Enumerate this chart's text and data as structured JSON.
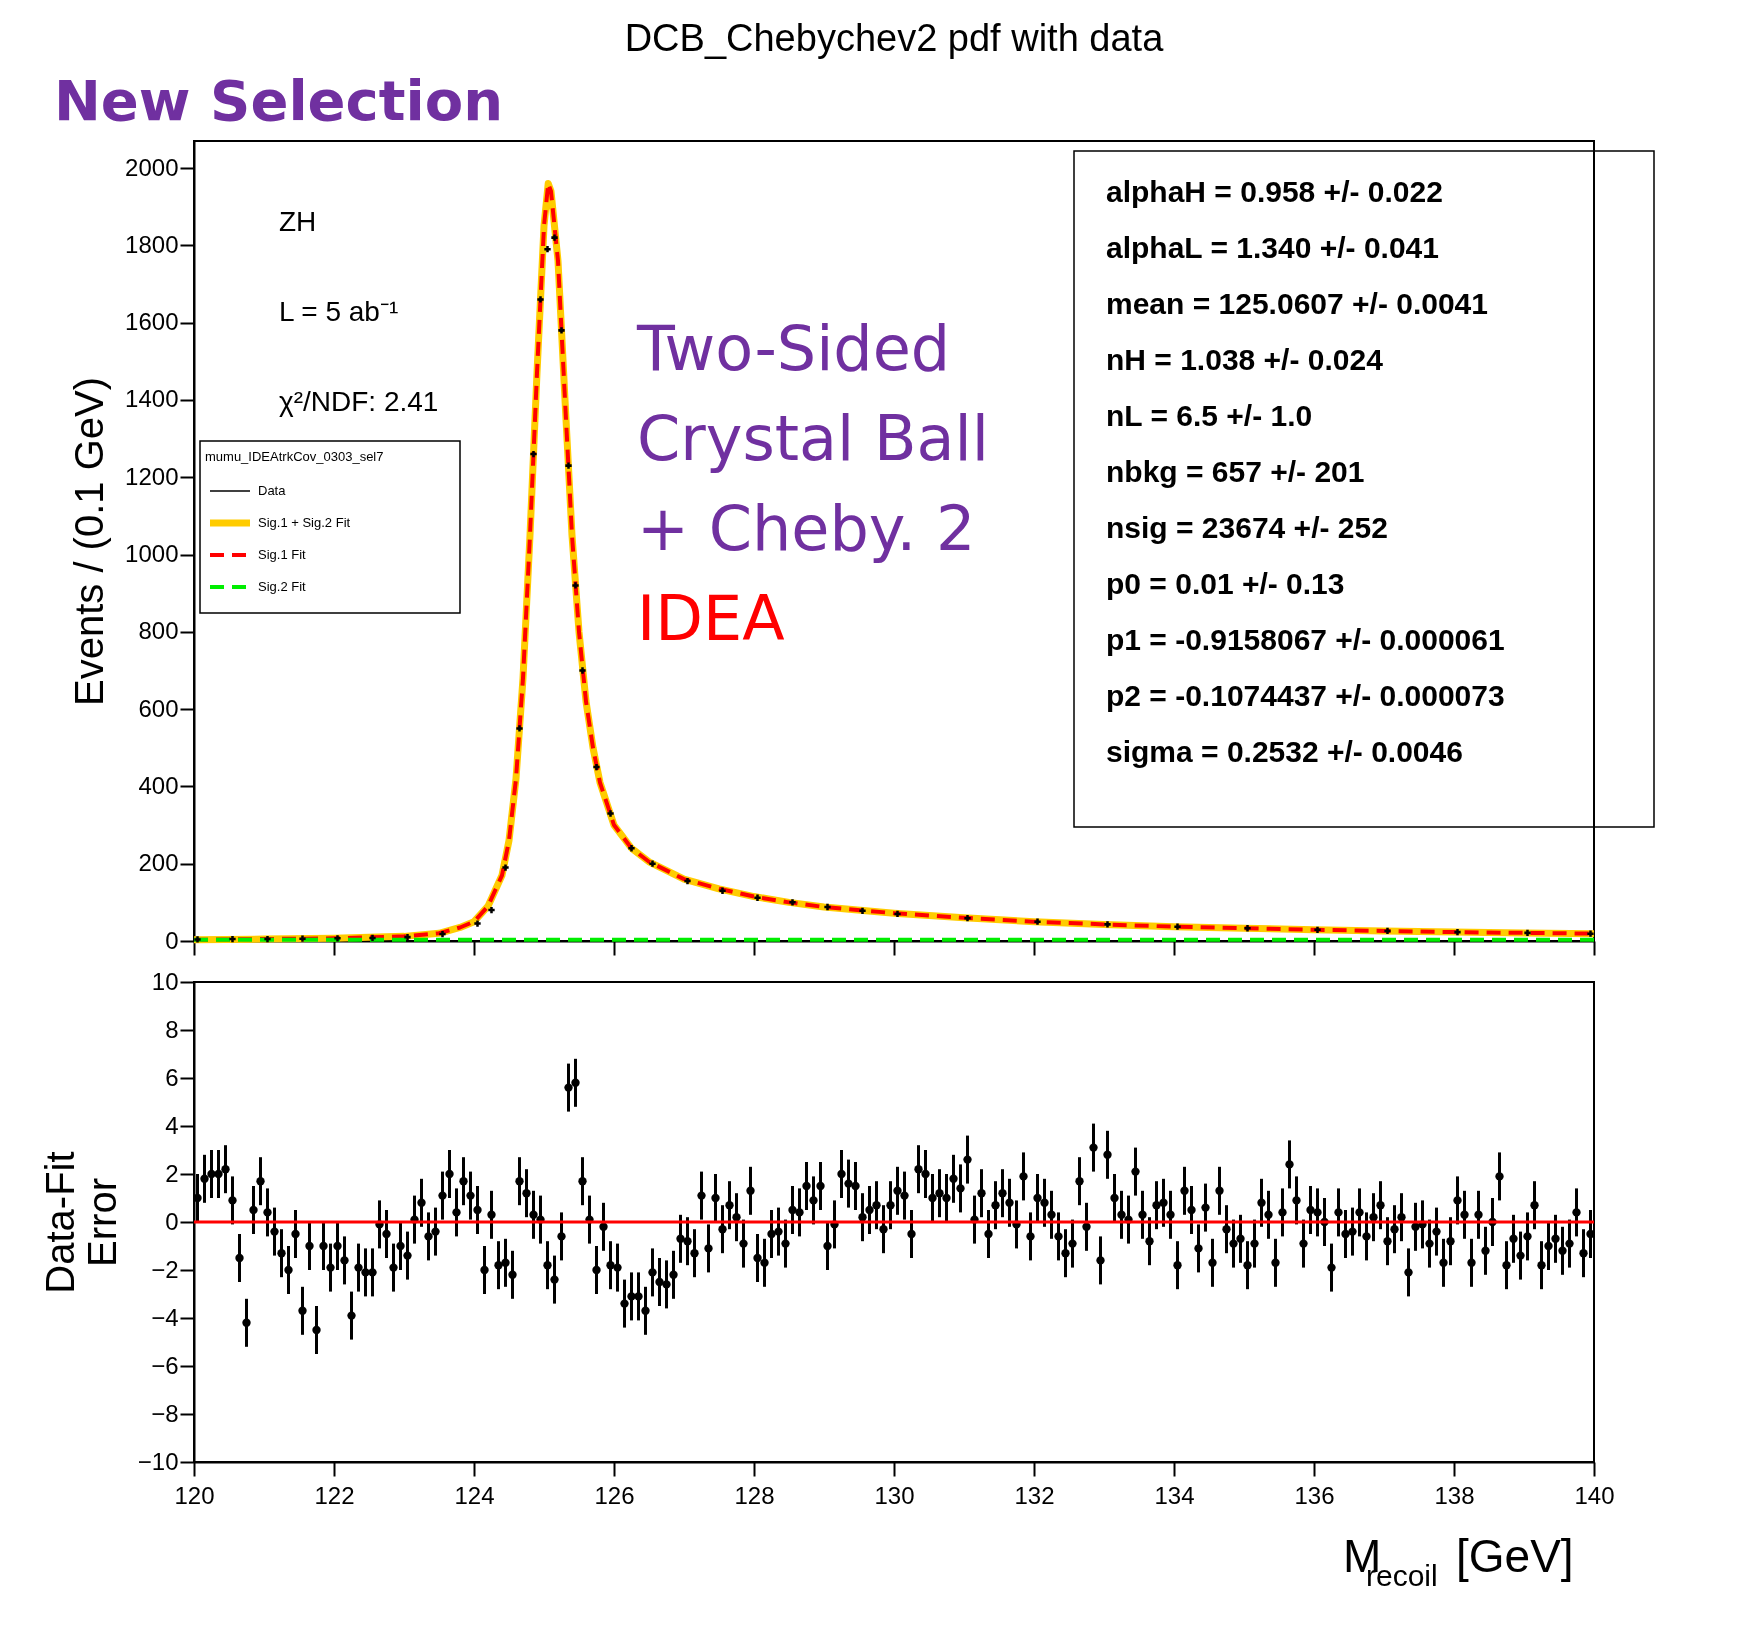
{
  "chart_data": [
    {
      "type": "line",
      "title": "DCB_Chebychev2 pdf with data",
      "ylabel": "Events / (0.1 GeV)",
      "legend_title": "mumu_IDEAtrkCov_0303_sel7",
      "legend": "top left",
      "tick_labels": "y",
      "xlim": [
        120,
        140
      ],
      "xticks": [
        120,
        122,
        124,
        126,
        128,
        130,
        132,
        134,
        136,
        138,
        140
      ],
      "ylim": [
        0,
        2070
      ],
      "yticks": [
        0,
        200,
        400,
        600,
        800,
        1000,
        1200,
        1400,
        1600,
        1800,
        2000
      ],
      "annotations": [
        "New Selection",
        "ZH",
        "L = 5 ab⁻¹",
        "χ²/NDF: 2.41",
        "Two-Sided",
        "Crystal Ball",
        "+ Cheby. 2",
        "IDEA",
        "alphaH =  0.958 +/- 0.022",
        "alphaL =  1.340 +/- 0.041",
        "mean =  125.0607 +/- 0.0041",
        "nH =  1.038 +/- 0.024",
        "nL =  6.5 +/- 1.0",
        "nbkg =  657 +/- 201",
        "nsig =  23674 +/- 252",
        "p0 =  0.01 +/- 0.13",
        "p1 = -0.9158067 +/- 0.000061",
        "p2 = -0.1074437 +/- 0.000073",
        "sigma =  0.2532 +/- 0.0046"
      ],
      "series": [
        {
          "name": "Data",
          "type": "scatter",
          "marker": "cross",
          "color": "#000000",
          "x": [
            120.05,
            120.55,
            121.05,
            121.55,
            122.05,
            122.55,
            123.05,
            123.55,
            124.05,
            124.25,
            124.45,
            124.65,
            124.85,
            124.95,
            125.05,
            125.15,
            125.25,
            125.35,
            125.45,
            125.55,
            125.75,
            125.95,
            126.25,
            126.55,
            127.05,
            127.55,
            128.05,
            128.55,
            129.05,
            129.55,
            130.05,
            131.05,
            132.05,
            133.05,
            134.05,
            135.05,
            136.05,
            137.05,
            138.05,
            139.05,
            139.95
          ],
          "values": [
            4,
            5,
            5,
            6,
            7,
            8,
            10,
            18,
            45,
            80,
            190,
            550,
            1260,
            1660,
            1790,
            1820,
            1580,
            1230,
            920,
            700,
            450,
            330,
            240,
            200,
            155,
            130,
            112,
            100,
            88,
            78,
            70,
            59,
            50,
            43,
            37,
            33,
            29,
            26,
            23,
            21,
            19
          ]
        },
        {
          "name": "Sig.1 + Sig.2 Fit",
          "type": "line",
          "line_style": "solid",
          "color": "#ffcc00",
          "x": [
            120,
            121,
            122,
            123,
            123.5,
            123.8,
            124,
            124.2,
            124.4,
            124.5,
            124.6,
            124.7,
            124.8,
            124.9,
            125.0,
            125.06,
            125.1,
            125.2,
            125.3,
            125.4,
            125.5,
            125.6,
            125.7,
            125.8,
            126,
            126.25,
            126.5,
            127,
            127.5,
            128,
            128.5,
            129,
            130,
            131,
            132,
            133,
            134,
            135,
            136,
            137,
            138,
            139,
            140
          ],
          "values": [
            3,
            5,
            7,
            12,
            20,
            35,
            50,
            90,
            170,
            260,
            420,
            680,
            1050,
            1470,
            1850,
            1960,
            1940,
            1760,
            1400,
            1050,
            800,
            620,
            500,
            410,
            300,
            240,
            205,
            160,
            135,
            115,
            100,
            88,
            72,
            60,
            50,
            43,
            37,
            33,
            29,
            26,
            23,
            21,
            19
          ]
        },
        {
          "name": "Sig.1 Fit",
          "type": "line",
          "line_style": "dashed",
          "color": "#ff0000",
          "x": [
            120,
            121,
            122,
            123,
            123.5,
            123.8,
            124,
            124.2,
            124.4,
            124.5,
            124.6,
            124.7,
            124.8,
            124.9,
            125.0,
            125.06,
            125.1,
            125.2,
            125.3,
            125.4,
            125.5,
            125.6,
            125.7,
            125.8,
            126,
            126.25,
            126.5,
            127,
            127.5,
            128,
            128.5,
            129,
            130,
            131,
            132,
            133,
            134,
            135,
            136,
            137,
            138,
            139,
            140
          ],
          "values": [
            3,
            5,
            7,
            12,
            20,
            35,
            50,
            90,
            170,
            260,
            420,
            680,
            1050,
            1470,
            1850,
            1960,
            1940,
            1760,
            1400,
            1050,
            800,
            620,
            500,
            410,
            300,
            240,
            205,
            160,
            135,
            115,
            100,
            88,
            72,
            60,
            50,
            43,
            37,
            33,
            29,
            26,
            23,
            21,
            19
          ]
        },
        {
          "name": "Sig.2 Fit",
          "type": "line",
          "line_style": "dashed",
          "color": "#00ee00",
          "x": [
            120,
            140
          ],
          "values": [
            3,
            3
          ]
        }
      ]
    },
    {
      "type": "scatter",
      "ylabel": "Data-Fit\nError",
      "xlabel": "M$_{recoil}$ [GeV]",
      "marker": "circle",
      "xlim": [
        120,
        140
      ],
      "xticks": [
        120,
        122,
        124,
        126,
        128,
        130,
        132,
        134,
        136,
        138,
        140
      ],
      "ylim": [
        -10,
        10
      ],
      "yticks": [
        {
          "value": -10,
          "label": "−10"
        },
        {
          "value": -8,
          "label": "−8"
        },
        {
          "value": -6,
          "label": "−6"
        },
        {
          "value": -4,
          "label": "−4"
        },
        {
          "value": -2,
          "label": "−2"
        },
        0,
        2,
        4,
        6,
        8,
        10
      ],
      "ref_lines": [
        {
          "axis": "y",
          "value": 0,
          "color": "#ff0000"
        }
      ],
      "series": [
        {
          "color": "#000000",
          "x": [
            120.05,
            120.15,
            120.25,
            120.35,
            120.45,
            120.55,
            120.65,
            120.75,
            120.85,
            120.95,
            121.05,
            121.15,
            121.25,
            121.35,
            121.45,
            121.55,
            121.65,
            121.75,
            121.85,
            121.95,
            122.05,
            122.15,
            122.25,
            122.35,
            122.45,
            122.55,
            122.65,
            122.75,
            122.85,
            122.95,
            123.05,
            123.15,
            123.25,
            123.35,
            123.45,
            123.55,
            123.65,
            123.75,
            123.85,
            123.95,
            124.05,
            124.15,
            124.25,
            124.35,
            124.45,
            124.55,
            124.65,
            124.75,
            124.85,
            124.95,
            125.05,
            125.15,
            125.25,
            125.35,
            125.45,
            125.55,
            125.65,
            125.75,
            125.85,
            125.95,
            126.05,
            126.15,
            126.25,
            126.35,
            126.45,
            126.55,
            126.65,
            126.75,
            126.85,
            126.95,
            127.05,
            127.15,
            127.25,
            127.35,
            127.45,
            127.55,
            127.65,
            127.75,
            127.85,
            127.95,
            128.05,
            128.15,
            128.25,
            128.35,
            128.45,
            128.55,
            128.65,
            128.75,
            128.85,
            128.95,
            129.05,
            129.15,
            129.25,
            129.35,
            129.45,
            129.55,
            129.65,
            129.75,
            129.85,
            129.95,
            130.05,
            130.15,
            130.25,
            130.35,
            130.45,
            130.55,
            130.65,
            130.75,
            130.85,
            130.95,
            131.05,
            131.15,
            131.25,
            131.35,
            131.45,
            131.55,
            131.65,
            131.75,
            131.85,
            131.95,
            132.05,
            132.15,
            132.25,
            132.35,
            132.45,
            132.55,
            132.65,
            132.75,
            132.85,
            132.95,
            133.05,
            133.15,
            133.25,
            133.35,
            133.45,
            133.55,
            133.65,
            133.75,
            133.85,
            133.95,
            134.05,
            134.15,
            134.25,
            134.35,
            134.45,
            134.55,
            134.65,
            134.75,
            134.85,
            134.95,
            135.05,
            135.15,
            135.25,
            135.35,
            135.45,
            135.55,
            135.65,
            135.75,
            135.85,
            135.95,
            136.05,
            136.15,
            136.25,
            136.35,
            136.45,
            136.55,
            136.65,
            136.75,
            136.85,
            136.95,
            137.05,
            137.15,
            137.25,
            137.35,
            137.45,
            137.55,
            137.65,
            137.75,
            137.85,
            137.95,
            138.05,
            138.15,
            138.25,
            138.35,
            138.45,
            138.55,
            138.65,
            138.75,
            138.85,
            138.95,
            139.05,
            139.15,
            139.25,
            139.35,
            139.45,
            139.55,
            139.65,
            139.75,
            139.85,
            139.95
          ],
          "values": [
            1.0,
            1.8,
            2.0,
            2.0,
            2.2,
            0.9,
            -1.5,
            -4.2,
            0.5,
            1.7,
            0.4,
            -0.4,
            -1.3,
            -2.0,
            -0.5,
            -3.7,
            -1.0,
            -4.5,
            -1.0,
            -1.9,
            -1.0,
            -1.6,
            -3.9,
            -1.9,
            -2.1,
            -2.1,
            -0.1,
            -0.5,
            -1.9,
            -1.0,
            -1.4,
            0.1,
            0.8,
            -0.6,
            -0.4,
            1.1,
            2.0,
            0.4,
            1.7,
            1.1,
            0.5,
            -2.0,
            0.3,
            -1.8,
            -1.7,
            -2.2,
            1.7,
            1.2,
            0.3,
            0.1,
            -1.8,
            -2.4,
            -0.6,
            5.6,
            5.8,
            1.7,
            0.1,
            -2.0,
            -0.2,
            -1.8,
            -1.9,
            -3.4,
            -3.1,
            -3.1,
            -3.7,
            -2.1,
            -2.5,
            -2.6,
            -2.2,
            -0.7,
            -0.8,
            -1.3,
            1.1,
            -1.1,
            1.0,
            -0.3,
            0.7,
            0.2,
            -0.9,
            1.3,
            -1.5,
            -1.7,
            -0.5,
            -0.4,
            -0.9,
            0.5,
            0.4,
            1.5,
            0.9,
            1.5,
            -1.0,
            -0.1,
            2.0,
            1.6,
            1.5,
            0.2,
            0.5,
            0.7,
            -0.3,
            0.7,
            1.3,
            1.1,
            -0.5,
            2.2,
            2.0,
            1.0,
            1.2,
            1.0,
            1.8,
            1.4,
            2.6,
            0.1,
            1.2,
            -0.5,
            0.7,
            1.2,
            0.8,
            -0.1,
            1.9,
            -0.6,
            1.0,
            0.8,
            0.3,
            -0.6,
            -1.3,
            -0.9,
            1.7,
            -0.2,
            3.1,
            -1.6,
            2.8,
            1.0,
            0.3,
            0.1,
            2.1,
            0.3,
            -0.8,
            0.7,
            0.8,
            0.3,
            -1.8,
            1.3,
            0.5,
            -1.1,
            0.6,
            -1.7,
            1.3,
            -0.3,
            -0.9,
            -0.7,
            -1.8,
            -0.9,
            0.8,
            0.3,
            -1.7,
            0.4,
            2.4,
            0.9,
            -0.9,
            0.5,
            0.4,
            0.0,
            -1.9,
            0.4,
            -0.5,
            -0.4,
            0.4,
            -0.6,
            0.2,
            0.7,
            -0.8,
            -0.3,
            0.2,
            -2.1,
            -0.2,
            -0.1,
            -0.9,
            -0.4,
            -1.7,
            -0.8,
            0.9,
            0.3,
            -1.7,
            0.3,
            -1.2,
            0.0,
            1.9,
            -1.8,
            -0.7,
            -1.4,
            -0.6,
            0.7,
            -1.8,
            -1.0,
            -0.7,
            -1.2,
            -0.9,
            0.4,
            -1.3,
            -0.5
          ],
          "errors": [
            1,
            1,
            1,
            1,
            1,
            1,
            1,
            1,
            1,
            1,
            1,
            1,
            1,
            1,
            1,
            1,
            1,
            1,
            1,
            1,
            1,
            1,
            1,
            1,
            1,
            1,
            1,
            1,
            1,
            1,
            1,
            1,
            1,
            1,
            1,
            1,
            1,
            1,
            1,
            1,
            1,
            1,
            1,
            1,
            1,
            1,
            1,
            1,
            1,
            1,
            1,
            1,
            1,
            1,
            1,
            1,
            1,
            1,
            1,
            1,
            1,
            1,
            1,
            1,
            1,
            1,
            1,
            1,
            1,
            1,
            1,
            1,
            1,
            1,
            1,
            1,
            1,
            1,
            1,
            1,
            1,
            1,
            1,
            1,
            1,
            1,
            1,
            1,
            1,
            1,
            1,
            1,
            1,
            1,
            1,
            1,
            1,
            1,
            1,
            1,
            1,
            1,
            1,
            1,
            1,
            1,
            1,
            1,
            1,
            1,
            1,
            1,
            1,
            1,
            1,
            1,
            1,
            1,
            1,
            1,
            1,
            1,
            1,
            1,
            1,
            1,
            1,
            1,
            1,
            1,
            1,
            1,
            1,
            1,
            1,
            1,
            1,
            1,
            1,
            1,
            1,
            1,
            1,
            1,
            1,
            1,
            1,
            1,
            1,
            1,
            1,
            1,
            1,
            1,
            1,
            1,
            1,
            1,
            1,
            1,
            1,
            1,
            1,
            1,
            1,
            1,
            1,
            1,
            1,
            1,
            1,
            1,
            1,
            1,
            1,
            1,
            1,
            1,
            1,
            1,
            1,
            1,
            1,
            1,
            1,
            1,
            1,
            1,
            1,
            1,
            1,
            1,
            1,
            1,
            1,
            1,
            1,
            1,
            1,
            1
          ]
        }
      ]
    }
  ]
}
